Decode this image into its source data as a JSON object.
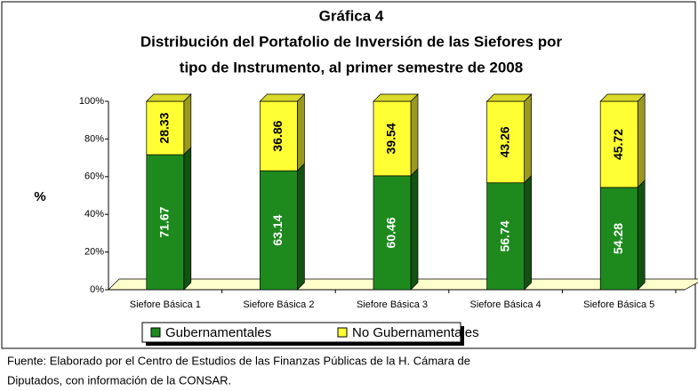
{
  "chart_data": {
    "type": "bar",
    "stacked": true,
    "title": "Gráfica 4",
    "subtitle": [
      "Distribución del Portafolio de Inversión de las Siefores por",
      "tipo de Instrumento, al primer semestre de 2008"
    ],
    "ylabel": "%",
    "categories": [
      "Siefore Básica 1",
      "Siefore Básica 2",
      "Siefore Básica 3",
      "Siefore Básica 4",
      "Siefore Básica 5"
    ],
    "series": [
      {
        "name": "Gubernamentales",
        "color": "#1e8a1e",
        "values": [
          71.67,
          63.14,
          60.46,
          56.74,
          54.28
        ]
      },
      {
        "name": "No Gubernamentales",
        "color": "#ffff33",
        "values": [
          28.33,
          36.86,
          39.54,
          43.26,
          45.72
        ]
      }
    ],
    "ylim": [
      0,
      100
    ],
    "yticks": [
      {
        "value": 0,
        "label": "0%"
      },
      {
        "value": 20,
        "label": "20%"
      },
      {
        "value": 40,
        "label": "40%"
      },
      {
        "value": 60,
        "label": "60%"
      },
      {
        "value": 80,
        "label": "80%"
      },
      {
        "value": 100,
        "label": "100%"
      }
    ],
    "source": [
      "Fuente: Elaborado por el Centro de Estudios de las Finanzas Públicas de la H. Cámara de",
      "Diputados, con información de la CONSAR."
    ]
  }
}
